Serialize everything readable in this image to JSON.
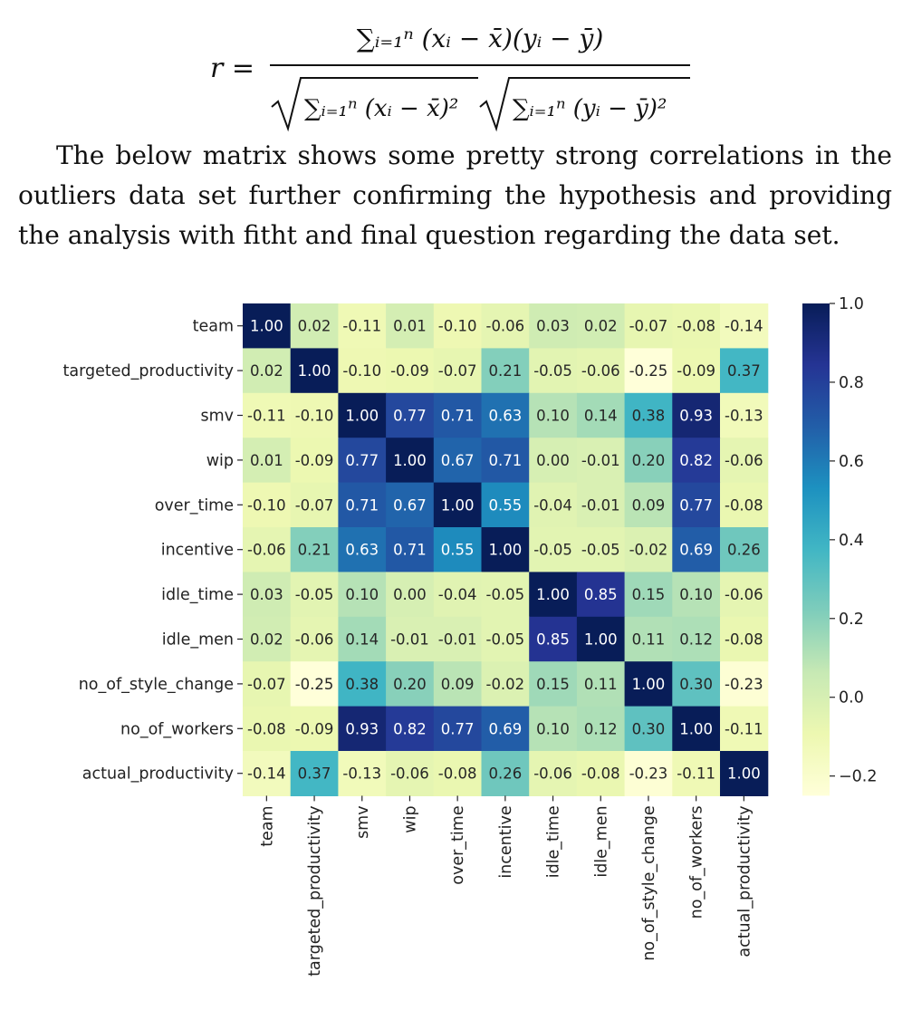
{
  "formula": {
    "lhs": "r =",
    "numerator": "∑ᵢ₌₁ⁿ (xᵢ − x̄)(yᵢ − ȳ)",
    "denominator_left": "∑ᵢ₌₁ⁿ (xᵢ − x̄)²",
    "denominator_right": "∑ᵢ₌₁ⁿ (yᵢ − ȳ)²"
  },
  "paragraph": "The below matrix shows some pretty strong correlations in the outliers data set further confirming the hypothesis and providing the analysis with fitht and final question regarding the data set.",
  "chart_data": {
    "type": "heatmap",
    "labels": [
      "team",
      "targeted_productivity",
      "smv",
      "wip",
      "over_time",
      "incentive",
      "idle_time",
      "idle_men",
      "no_of_style_change",
      "no_of_workers",
      "actual_productivity"
    ],
    "values": [
      [
        1.0,
        0.02,
        -0.11,
        0.01,
        -0.1,
        -0.06,
        0.03,
        0.02,
        -0.07,
        -0.08,
        -0.14
      ],
      [
        0.02,
        1.0,
        -0.1,
        -0.09,
        -0.07,
        0.21,
        -0.05,
        -0.06,
        -0.25,
        -0.09,
        0.37
      ],
      [
        -0.11,
        -0.1,
        1.0,
        0.77,
        0.71,
        0.63,
        0.1,
        0.14,
        0.38,
        0.93,
        -0.13
      ],
      [
        0.01,
        -0.09,
        0.77,
        1.0,
        0.67,
        0.71,
        0.0,
        -0.01,
        0.2,
        0.82,
        -0.06
      ],
      [
        -0.1,
        -0.07,
        0.71,
        0.67,
        1.0,
        0.55,
        -0.04,
        -0.01,
        0.09,
        0.77,
        -0.08
      ],
      [
        -0.06,
        0.21,
        0.63,
        0.71,
        0.55,
        1.0,
        -0.05,
        -0.05,
        -0.02,
        0.69,
        0.26
      ],
      [
        0.03,
        -0.05,
        0.1,
        0.0,
        -0.04,
        -0.05,
        1.0,
        0.85,
        0.15,
        0.1,
        -0.06
      ],
      [
        0.02,
        -0.06,
        0.14,
        -0.01,
        -0.01,
        -0.05,
        0.85,
        1.0,
        0.11,
        0.12,
        -0.08
      ],
      [
        -0.07,
        -0.25,
        0.38,
        0.2,
        0.09,
        -0.02,
        0.15,
        0.11,
        1.0,
        0.3,
        -0.23
      ],
      [
        -0.08,
        -0.09,
        0.93,
        0.82,
        0.77,
        0.69,
        0.1,
        0.12,
        0.3,
        1.0,
        -0.11
      ],
      [
        -0.14,
        0.37,
        -0.13,
        -0.06,
        -0.08,
        0.26,
        -0.06,
        -0.08,
        -0.23,
        -0.11,
        1.0
      ]
    ],
    "colorbar": {
      "min": -0.25,
      "max": 1.0,
      "ticks": [
        1.0,
        0.8,
        0.6,
        0.4,
        0.2,
        0.0,
        -0.2
      ],
      "tick_labels": [
        "1.0",
        "0.8",
        "0.6",
        "0.4",
        "0.2",
        "0.0",
        "−0.2"
      ]
    },
    "colormap": "YlGnBu",
    "colormap_stops": [
      "#ffffd9",
      "#edf8b1",
      "#c7e9b4",
      "#7fcdbb",
      "#41b6c4",
      "#1d91c0",
      "#225ea8",
      "#253494",
      "#081d58"
    ],
    "annotation_format": "2 decimals"
  }
}
